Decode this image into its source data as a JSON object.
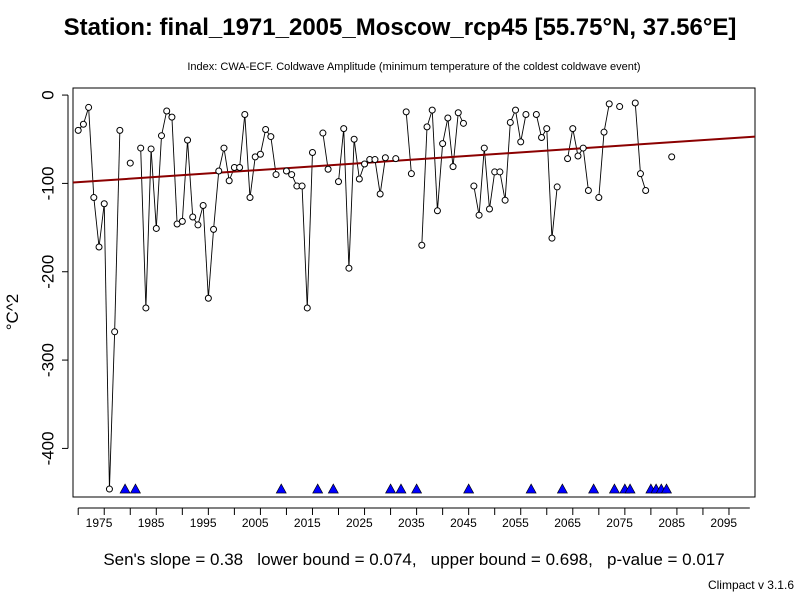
{
  "chart_data": {
    "type": "line",
    "title": "Station: final_1971_2005_Moscow_rcp45 [55.75°N, 37.56°E]",
    "subtitle": "Index: CWA-ECF. Coldwave Amplitude (minimum temperature of the coldest coldwave event)",
    "xlabel": "",
    "ylabel": "°C^2",
    "xlim": [
      1970,
      2101
    ],
    "ylim": [
      -455,
      8
    ],
    "x_ticks": [
      1975,
      1985,
      1995,
      2005,
      2015,
      2025,
      2035,
      2045,
      2055,
      2065,
      2075,
      2085,
      2095
    ],
    "y_ticks": [
      0,
      -100,
      -200,
      -300,
      -400
    ],
    "series": [
      {
        "values": [
          [
            1971,
            -40
          ],
          [
            1972,
            -33
          ],
          [
            1973,
            -14
          ],
          [
            1974,
            -116
          ],
          [
            1975,
            -172
          ],
          [
            1976,
            -123
          ],
          [
            1977,
            -446
          ],
          [
            1978,
            -268
          ],
          [
            1979,
            -40
          ],
          [
            1980,
            null
          ],
          [
            1981,
            -77
          ],
          [
            1982,
            null
          ],
          [
            1983,
            -60
          ],
          [
            1984,
            -241
          ],
          [
            1985,
            -61
          ],
          [
            1986,
            -151
          ],
          [
            1987,
            -46
          ],
          [
            1988,
            -18
          ],
          [
            1989,
            -25
          ],
          [
            1990,
            -146
          ],
          [
            1991,
            -143
          ],
          [
            1992,
            -51
          ],
          [
            1993,
            -138
          ],
          [
            1994,
            -147
          ],
          [
            1995,
            -125
          ],
          [
            1996,
            -230
          ],
          [
            1997,
            -152
          ],
          [
            1998,
            -86
          ],
          [
            1999,
            -60
          ],
          [
            2000,
            -97
          ],
          [
            2001,
            -82
          ],
          [
            2002,
            -82
          ],
          [
            2003,
            -22
          ],
          [
            2004,
            -116
          ],
          [
            2005,
            -70
          ],
          [
            2006,
            -67
          ],
          [
            2007,
            -39
          ],
          [
            2008,
            -47
          ],
          [
            2009,
            -90
          ],
          [
            2010,
            null
          ],
          [
            2011,
            -86
          ],
          [
            2012,
            -90
          ],
          [
            2013,
            -103
          ],
          [
            2014,
            -103
          ],
          [
            2015,
            -241
          ],
          [
            2016,
            -65
          ],
          [
            2017,
            null
          ],
          [
            2018,
            -43
          ],
          [
            2019,
            -84
          ],
          [
            2020,
            null
          ],
          [
            2021,
            -98
          ],
          [
            2022,
            -38
          ],
          [
            2023,
            -196
          ],
          [
            2024,
            -50
          ],
          [
            2025,
            -95
          ],
          [
            2026,
            -78
          ],
          [
            2027,
            -73
          ],
          [
            2028,
            -73
          ],
          [
            2029,
            -112
          ],
          [
            2030,
            -71
          ],
          [
            2031,
            null
          ],
          [
            2032,
            -72
          ],
          [
            2033,
            null
          ],
          [
            2034,
            -19
          ],
          [
            2035,
            -89
          ],
          [
            2036,
            null
          ],
          [
            2037,
            -170
          ],
          [
            2038,
            -36
          ],
          [
            2039,
            -17
          ],
          [
            2040,
            -131
          ],
          [
            2041,
            -55
          ],
          [
            2042,
            -26
          ],
          [
            2043,
            -81
          ],
          [
            2044,
            -20
          ],
          [
            2045,
            -32
          ],
          [
            2046,
            null
          ],
          [
            2047,
            -103
          ],
          [
            2048,
            -136
          ],
          [
            2049,
            -60
          ],
          [
            2050,
            -129
          ],
          [
            2051,
            -87
          ],
          [
            2052,
            -87
          ],
          [
            2053,
            -119
          ],
          [
            2054,
            -31
          ],
          [
            2055,
            -17
          ],
          [
            2056,
            -53
          ],
          [
            2057,
            -22
          ],
          [
            2058,
            null
          ],
          [
            2059,
            -22
          ],
          [
            2060,
            -48
          ],
          [
            2061,
            -38
          ],
          [
            2062,
            -162
          ],
          [
            2063,
            -104
          ],
          [
            2064,
            null
          ],
          [
            2065,
            -72
          ],
          [
            2066,
            -38
          ],
          [
            2067,
            -69
          ],
          [
            2068,
            -60
          ],
          [
            2069,
            -108
          ],
          [
            2070,
            null
          ],
          [
            2071,
            -116
          ],
          [
            2072,
            -42
          ],
          [
            2073,
            -10
          ],
          [
            2074,
            null
          ],
          [
            2075,
            -13
          ],
          [
            2076,
            null
          ],
          [
            2077,
            null
          ],
          [
            2078,
            -9
          ],
          [
            2079,
            -89
          ],
          [
            2080,
            -108
          ],
          [
            2081,
            null
          ],
          [
            2082,
            null
          ],
          [
            2083,
            null
          ],
          [
            2084,
            null
          ],
          [
            2085,
            -70
          ]
        ]
      }
    ],
    "trend_line": {
      "start": [
        1970,
        -99
      ],
      "end": [
        2101,
        -47
      ],
      "color": "#8b0000"
    },
    "missing_marker": {
      "symbol": "triangle",
      "color": "#0000ff",
      "y": -446
    },
    "grid": false,
    "legend": "none"
  },
  "stats_text": "Sen's slope = 0.38   lower bound = 0.074,   upper bound = 0.698,   p-value = 0.017",
  "version_text": "Climpact v 3.1.6"
}
